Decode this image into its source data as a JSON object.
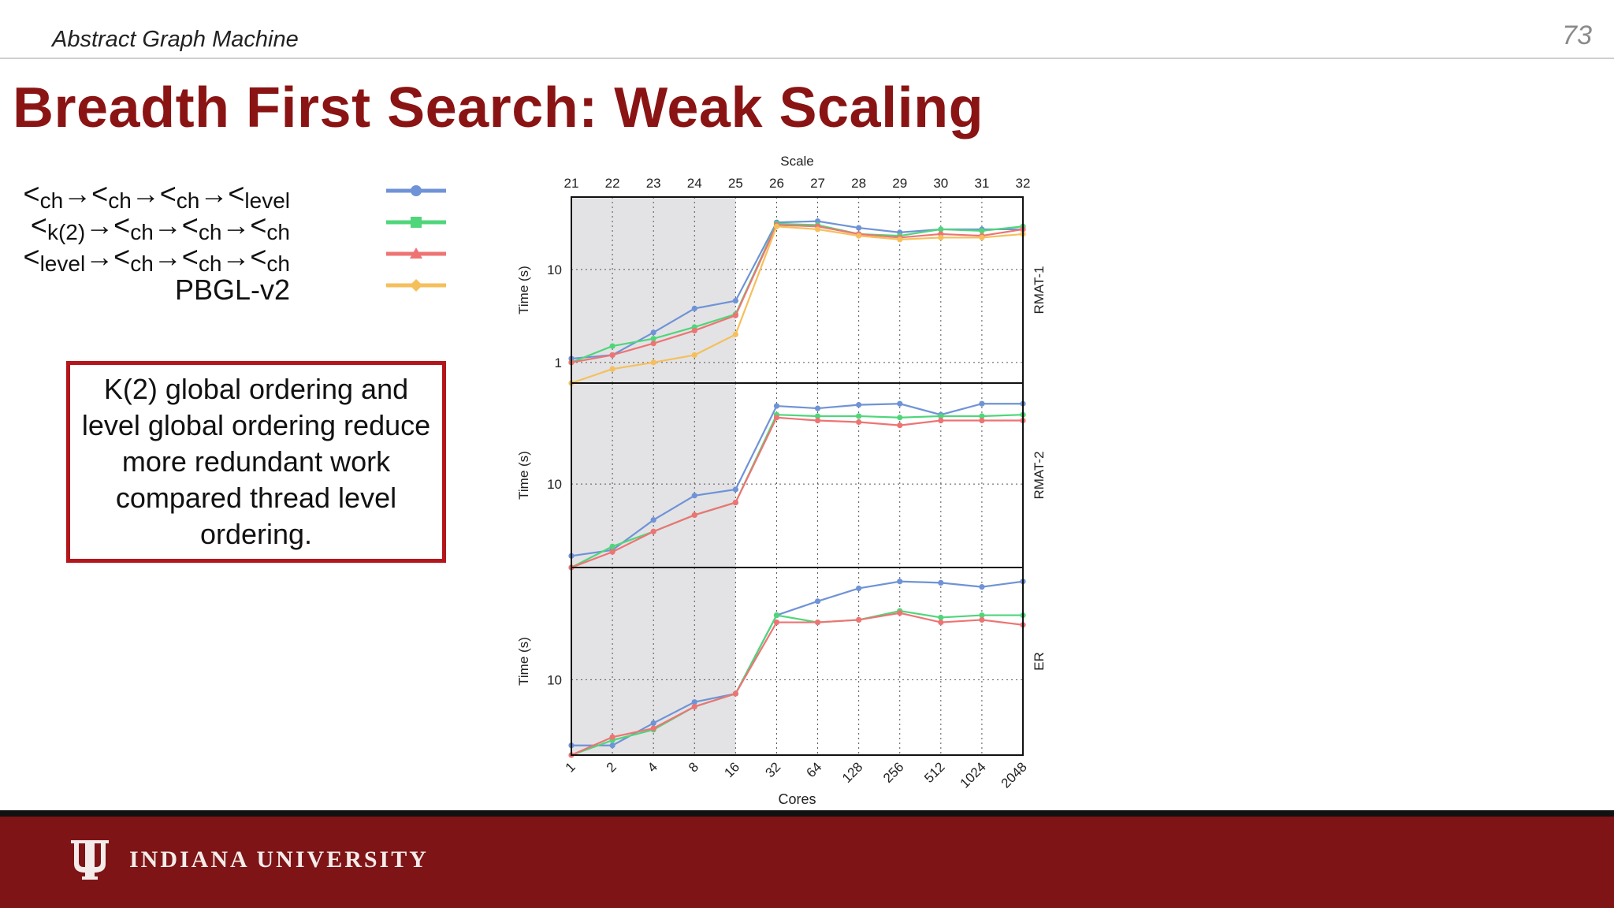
{
  "header": {
    "text": "Abstract Graph Machine",
    "page_number": "73"
  },
  "title": "Breadth First Search: Weak Scaling",
  "callout": "K(2) global ordering and level global ordering reduce more redundant work compared thread level ordering.",
  "footer": {
    "university": "INDIANA UNIVERSITY"
  },
  "colors": {
    "blue": "#6f93d6",
    "green": "#4fd67a",
    "red": "#ee7474",
    "orange": "#f5bf5c",
    "brand": "#7e1416",
    "title": "#8a1414"
  },
  "legend": [
    {
      "parts": [
        "<",
        "ch",
        "→<",
        "ch",
        "→<",
        "ch",
        "→<",
        "level"
      ],
      "color": "#6f93d6",
      "marker": "circle"
    },
    {
      "parts": [
        "<",
        "k(2)",
        "→<",
        "ch",
        "→<",
        "ch",
        "→<",
        "ch"
      ],
      "color": "#4fd67a",
      "marker": "square"
    },
    {
      "parts": [
        "<",
        "level",
        "→<",
        "ch",
        "→<",
        "ch",
        "→<",
        "ch"
      ],
      "color": "#ee7474",
      "marker": "triangle"
    },
    {
      "parts": [
        "PBGL-v2"
      ],
      "color": "#f5bf5c",
      "marker": "diamond"
    }
  ],
  "chart_data": {
    "type": "line",
    "top_axis_label": "Scale",
    "xlabel": "Cores",
    "ylabel": "Time (s)",
    "scale_ticks": [
      "21",
      "22",
      "23",
      "24",
      "25",
      "26",
      "27",
      "28",
      "29",
      "30",
      "31",
      "32"
    ],
    "cores_ticks": [
      "1",
      "2",
      "4",
      "8",
      "16",
      "32",
      "64",
      "128",
      "256",
      "512",
      "1024",
      "2048"
    ],
    "panels": [
      {
        "name": "RMAT-1",
        "ytick_labels": [
          "1",
          "10"
        ],
        "ylim": [
          0.6,
          60
        ],
        "series": [
          {
            "values": [
              1.1,
              1.2,
              2.1,
              3.8,
              4.6,
              32,
              33,
              28,
              25,
              27,
              27,
              27
            ]
          },
          {
            "values": [
              1.0,
              1.5,
              1.8,
              2.4,
              3.3,
              31,
              30,
              24,
              23,
              27,
              26,
              29
            ]
          },
          {
            "values": [
              1.0,
              1.2,
              1.6,
              2.2,
              3.2,
              30,
              29,
              24,
              22,
              24,
              23,
              27
            ]
          },
          {
            "values": [
              0.6,
              0.85,
              1.0,
              1.2,
              2.0,
              29,
              27,
              23,
              21,
              22,
              22,
              24
            ]
          }
        ]
      },
      {
        "name": "RMAT-2",
        "ytick_labels": [
          "10"
        ],
        "ylim": [
          2,
          70
        ],
        "series": [
          {
            "values": [
              2.5,
              2.8,
              5,
              8,
              9,
              45,
              43,
              46,
              47,
              38,
              47,
              47
            ]
          },
          {
            "values": [
              2.0,
              3.0,
              4,
              5.5,
              7,
              38,
              37,
              37,
              36,
              37,
              37,
              38
            ]
          },
          {
            "values": [
              2.0,
              2.7,
              4,
              5.5,
              7,
              36,
              34,
              33,
              31,
              34,
              34,
              34
            ]
          }
        ]
      },
      {
        "name": "ER",
        "ytick_labels": [
          "10"
        ],
        "ylim": [
          3,
          60
        ],
        "series": [
          {
            "values": [
              3.5,
              3.5,
              5,
              7,
              8,
              28,
              35,
              43,
              48,
              47,
              44,
              48
            ]
          },
          {
            "values": [
              3.0,
              3.8,
              4.5,
              6.5,
              8,
              28,
              25,
              26,
              30,
              27,
              28,
              28
            ]
          },
          {
            "values": [
              3.0,
              4.0,
              4.6,
              6.5,
              8,
              25,
              25,
              26,
              29,
              25,
              26,
              24
            ]
          }
        ]
      }
    ]
  }
}
